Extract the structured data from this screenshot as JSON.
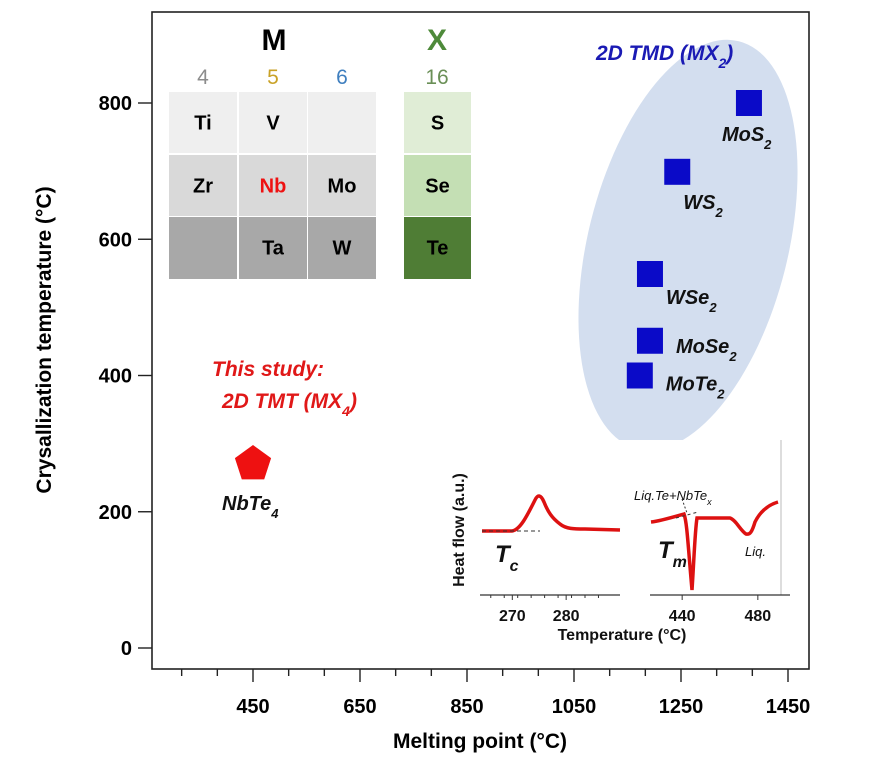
{
  "chart_data": {
    "type": "scatter",
    "title": "",
    "xlabel": "Melting point (°C)",
    "ylabel": "Crysallization temperature (°C)",
    "xlim": [
      270,
      1500
    ],
    "ylim": [
      -60,
      900
    ],
    "x_ticks": [
      450,
      650,
      850,
      1050,
      1250,
      1450
    ],
    "y_ticks": [
      0,
      200,
      400,
      600,
      800
    ],
    "grid": false,
    "series": [
      {
        "name": "2D TMD (MX2)",
        "marker": "square",
        "color": "#0a0ac8",
        "points": [
          {
            "label": "MoS",
            "sub": "2",
            "x": 1377,
            "y": 800
          },
          {
            "label": "WS",
            "sub": "2",
            "x": 1243,
            "y": 699
          },
          {
            "label": "WSe",
            "sub": "2",
            "x": 1192,
            "y": 549
          },
          {
            "label": "MoSe",
            "sub": "2",
            "x": 1192,
            "y": 451
          },
          {
            "label": "MoTe",
            "sub": "2",
            "x": 1173,
            "y": 400
          }
        ]
      },
      {
        "name": "2D TMT (MX4)",
        "marker": "pentagon",
        "color": "#ee1111",
        "points": [
          {
            "label": "NbTe",
            "sub": "4",
            "x": 450,
            "y": 273
          }
        ]
      }
    ],
    "annotations": {
      "tmd_group": {
        "text": "2D TMD (MX",
        "sub": "2",
        "close": ")",
        "color": "#1a1ab4",
        "ellipse_color": "#d3deef"
      },
      "this_study": {
        "line1": "This study:",
        "line2": "2D TMT (MX",
        "sub": "4",
        "close": ")",
        "color": "#e01818"
      }
    },
    "periodic_table": {
      "m_header": "M",
      "x_header": "X",
      "group_numbers": [
        {
          "text": "4",
          "color": "#8c8c8c"
        },
        {
          "text": "5",
          "color": "#c9a227"
        },
        {
          "text": "6",
          "color": "#3f7fbf"
        },
        {
          "text": "16",
          "color": "#6a8f56"
        }
      ],
      "m_rows": [
        [
          "Ti",
          "V",
          ""
        ],
        [
          "Zr",
          "Nb",
          "Mo"
        ],
        [
          "",
          "Ta",
          "W"
        ]
      ],
      "x_rows": [
        "S",
        "Se",
        "Te"
      ],
      "highlight": "Nb",
      "highlight_color": "#ee1111",
      "x_header_color": "#4e8a3a"
    },
    "inset": {
      "type": "line",
      "ylabel": "Heat flow (a.u.)",
      "xlabel": "Temperature (°C)",
      "left_panel": {
        "x_ticks": [
          270,
          280
        ],
        "xlim": [
          264,
          290
        ],
        "label": "T",
        "label_sub": "c"
      },
      "right_panel": {
        "x_ticks": [
          440,
          480
        ],
        "xlim": [
          423,
          497
        ],
        "label": "T",
        "label_sub": "m",
        "annotation": "Liq.Te+NbTe",
        "annotation_sub": "x",
        "liq_label": "Liq."
      },
      "color": "#dd1111"
    }
  }
}
